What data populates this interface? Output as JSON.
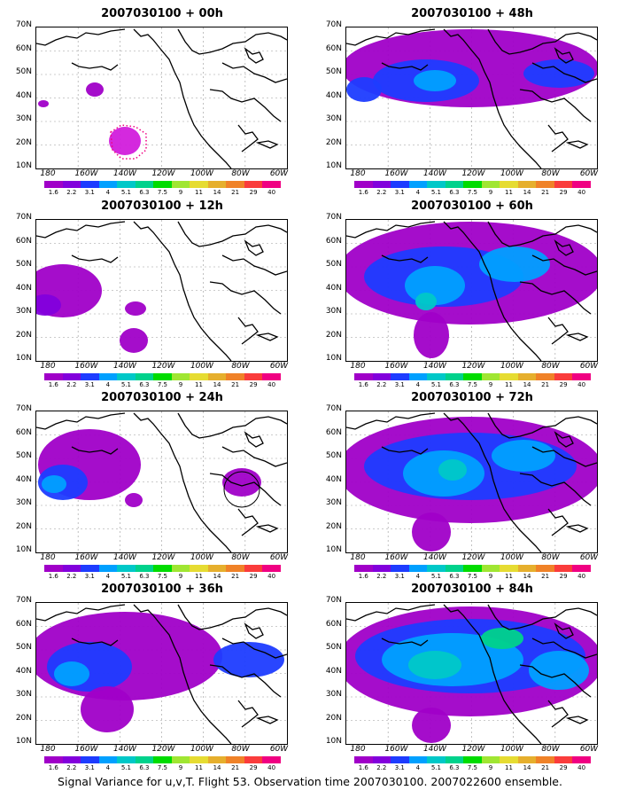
{
  "panels": [
    {
      "id": "p00",
      "title": "2007030100 + 00h",
      "level": 0
    },
    {
      "id": "p12",
      "title": "2007030100 + 12h",
      "level": 1
    },
    {
      "id": "p24",
      "title": "2007030100 + 24h",
      "level": 2
    },
    {
      "id": "p36",
      "title": "2007030100 + 36h",
      "level": 3
    },
    {
      "id": "p48",
      "title": "2007030100 + 48h",
      "level": 4
    },
    {
      "id": "p60",
      "title": "2007030100 + 60h",
      "level": 5
    },
    {
      "id": "p72",
      "title": "2007030100 + 72h",
      "level": 6
    },
    {
      "id": "p84",
      "title": "2007030100 + 84h",
      "level": 7
    }
  ],
  "lat_labels": [
    "70N",
    "60N",
    "50N",
    "40N",
    "30N",
    "20N",
    "10N"
  ],
  "lon_labels": [
    "180",
    "160W",
    "140W",
    "120W",
    "100W",
    "80W",
    "60W"
  ],
  "colorbar": {
    "values": [
      "1.6",
      "2.2",
      "3.1",
      "4",
      "5.1",
      "6.3",
      "7.5",
      "9",
      "11",
      "14",
      "21",
      "29",
      "40"
    ],
    "colors": [
      "#a000c8",
      "#8200dc",
      "#1e3cff",
      "#00a0ff",
      "#00c8c8",
      "#00d28c",
      "#00dc00",
      "#a0e632",
      "#e6dc32",
      "#e6af2d",
      "#f08228",
      "#fa3c3c",
      "#f00082"
    ]
  },
  "caption": "Signal Variance for u,v,T. Flight 53. Observation time 2007030100. 2007022600 ensemble."
}
